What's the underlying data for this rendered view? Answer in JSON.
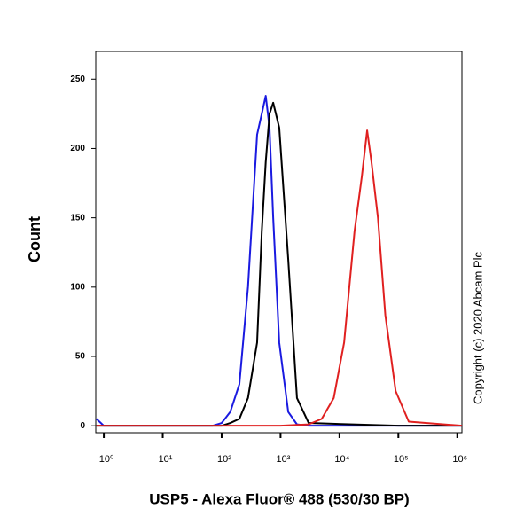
{
  "chart_data": {
    "type": "line",
    "xlabel": "USP5 - Alexa Fluor® 488 (530/30 BP)",
    "ylabel": "Count",
    "annotation": "Copyright (c) 2020 Abcam Plc",
    "xscale": "log",
    "xlim": [
      0.73,
      1200000
    ],
    "xticks": [
      {
        "value": 1,
        "label": "10⁰"
      },
      {
        "value": 10,
        "label": "10¹"
      },
      {
        "value": 100,
        "label": "10²"
      },
      {
        "value": 1000,
        "label": "10³"
      },
      {
        "value": 10000,
        "label": "10⁴"
      },
      {
        "value": 100000,
        "label": "10⁵"
      },
      {
        "value": 1000000,
        "label": "10⁶"
      }
    ],
    "ylim": [
      -5,
      270
    ],
    "yticks": [
      0,
      50,
      100,
      150,
      200,
      250
    ],
    "series": [
      {
        "color": "#1a1ae0",
        "x": [
          0.75,
          1,
          10,
          70,
          100,
          140,
          200,
          280,
          400,
          480,
          560,
          650,
          750,
          950,
          1350,
          1900,
          3000,
          100000,
          1200000
        ],
        "values": [
          5,
          0,
          0,
          0,
          2,
          10,
          30,
          100,
          210,
          225,
          238,
          215,
          150,
          60,
          10,
          1,
          0,
          0,
          0
        ]
      },
      {
        "color": "#000000",
        "x": [
          0.75,
          1,
          10,
          70,
          100,
          140,
          200,
          280,
          400,
          480,
          560,
          650,
          750,
          950,
          1350,
          1900,
          3000,
          100000,
          1200000
        ],
        "values": [
          0,
          0,
          0,
          0,
          0,
          2,
          5,
          20,
          60,
          140,
          190,
          225,
          233,
          215,
          120,
          20,
          2,
          0,
          0
        ]
      },
      {
        "color": "#e02020",
        "x": [
          0.75,
          1000,
          3000,
          5000,
          8000,
          12000,
          18000,
          24000,
          29500,
          35000,
          45000,
          60000,
          90000,
          150000,
          1200000
        ],
        "values": [
          0,
          0,
          1,
          5,
          20,
          60,
          140,
          180,
          213,
          190,
          150,
          80,
          25,
          3,
          0
        ]
      }
    ]
  }
}
